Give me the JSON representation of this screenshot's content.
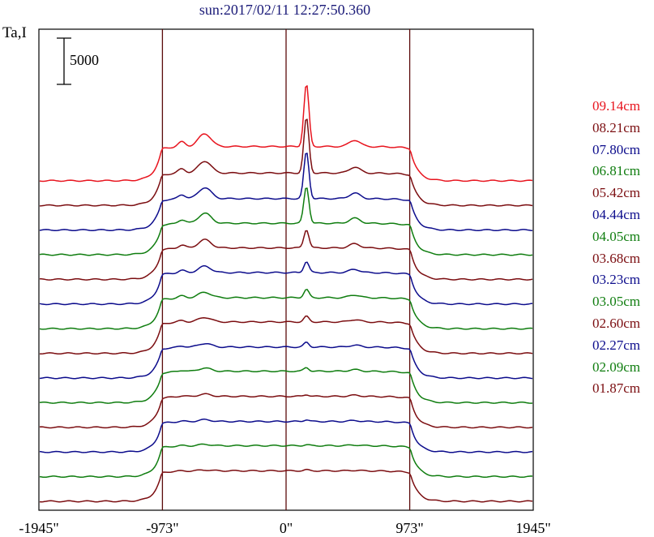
{
  "title": "sun:2017/02/11 12:27:50.360",
  "ylabel": "Ta,I",
  "chart_data": {
    "type": "line",
    "title": "sun:2017/02/11 12:27:50.360",
    "ylabel": "Ta,I",
    "xlabel": "",
    "x_ticks": [
      "-1945\"",
      "-973\"",
      "0\"",
      "973\"",
      "1945\""
    ],
    "x_tick_values": [
      -1945,
      -973,
      0,
      973,
      1945
    ],
    "xlim": [
      -1945,
      1945
    ],
    "vertical_lines": [
      -973,
      0,
      973
    ],
    "scale_bar_label": "5000",
    "scale_bar_value": 5000,
    "stacked_offsets": true,
    "series": [
      {
        "name": "09.14cm",
        "color": "#e8141e",
        "disk_level": 4700,
        "base_level": 1000,
        "peak": 11500,
        "bump": 1400
      },
      {
        "name": "08.21cm",
        "color": "#7b0d10",
        "disk_level": 4500,
        "base_level": 1000,
        "peak": 10500,
        "bump": 1300
      },
      {
        "name": "07.80cm",
        "color": "#0c0c8c",
        "disk_level": 4400,
        "base_level": 1000,
        "peak": 9500,
        "bump": 1200
      },
      {
        "name": "06.81cm",
        "color": "#0f7d0f",
        "disk_level": 4300,
        "base_level": 900,
        "peak": 8300,
        "bump": 1100
      },
      {
        "name": "05.42cm",
        "color": "#7b0d10",
        "disk_level": 4200,
        "base_level": 800,
        "peak": 6200,
        "bump": 900
      },
      {
        "name": "04.44cm",
        "color": "#0c0c8c",
        "disk_level": 4100,
        "base_level": 700,
        "peak": 5300,
        "bump": 700
      },
      {
        "name": "04.05cm",
        "color": "#0f7d0f",
        "disk_level": 4000,
        "base_level": 650,
        "peak": 4900,
        "bump": 600
      },
      {
        "name": "03.68cm",
        "color": "#7b0d10",
        "disk_level": 4000,
        "base_level": 600,
        "peak": 4600,
        "bump": 500
      },
      {
        "name": "03.23cm",
        "color": "#0c0c8c",
        "disk_level": 3900,
        "base_level": 550,
        "peak": 4400,
        "bump": 400
      },
      {
        "name": "03.05cm",
        "color": "#0f7d0f",
        "disk_level": 3900,
        "base_level": 500,
        "peak": 4300,
        "bump": 350
      },
      {
        "name": "02.60cm",
        "color": "#7b0d10",
        "disk_level": 3800,
        "base_level": 450,
        "peak": 4000,
        "bump": 250
      },
      {
        "name": "02.27cm",
        "color": "#0c0c8c",
        "disk_level": 3700,
        "base_level": 400,
        "peak": 3900,
        "bump": 200
      },
      {
        "name": "02.09cm",
        "color": "#0f7d0f",
        "disk_level": 3700,
        "base_level": 350,
        "peak": 3800,
        "bump": 150
      },
      {
        "name": "01.87cm",
        "color": "#7b0d10",
        "disk_level": 3600,
        "base_level": 300,
        "peak": 3700,
        "bump": 100
      }
    ]
  }
}
